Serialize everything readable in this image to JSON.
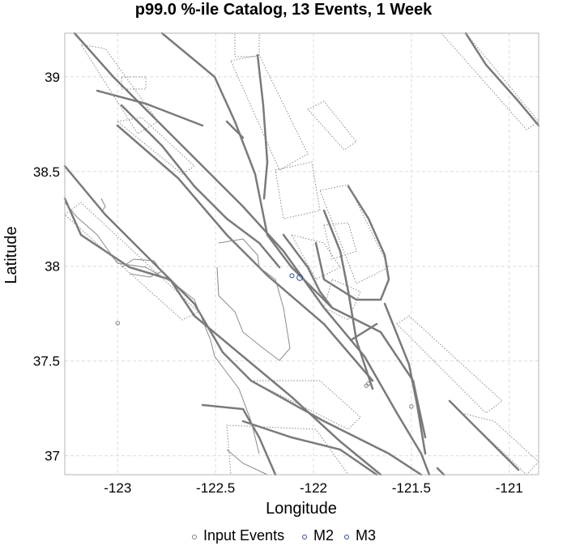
{
  "chart_data": {
    "type": "scatter",
    "title": "p99.0 %-ile Catalog, 13 Events, 1 Week",
    "xlabel": "Longitude",
    "ylabel": "Latitude",
    "xlim": [
      -123.27,
      -120.85
    ],
    "ylim": [
      36.9,
      39.23
    ],
    "xticks": [
      -123,
      -122.5,
      -122,
      -121.5,
      -121
    ],
    "xtick_labels": [
      "-123",
      "-122.5",
      "-122",
      "-121.5",
      "-121"
    ],
    "yticks": [
      37,
      37.5,
      38,
      38.5,
      39
    ],
    "ytick_labels": [
      "37",
      "37.5",
      "38",
      "38.5",
      "39"
    ],
    "grid": true,
    "legend_placement": "bottom",
    "series": [
      {
        "name": "Input Events",
        "color": "#7f7f7f",
        "points": [
          [
            -123.0,
            37.7
          ],
          [
            -121.5,
            37.26
          ],
          [
            -121.73,
            37.37
          ],
          [
            -121.72,
            37.38
          ]
        ]
      },
      {
        "name": "M2",
        "color": "#2c4a9e",
        "points": [
          [
            -122.11,
            37.95
          ]
        ]
      },
      {
        "name": "M3",
        "color": "#2c4a9e",
        "points": [
          [
            -122.07,
            37.94
          ]
        ]
      }
    ],
    "background_layers": [
      "fault traces",
      "fault dip hatching",
      "coastline"
    ]
  }
}
